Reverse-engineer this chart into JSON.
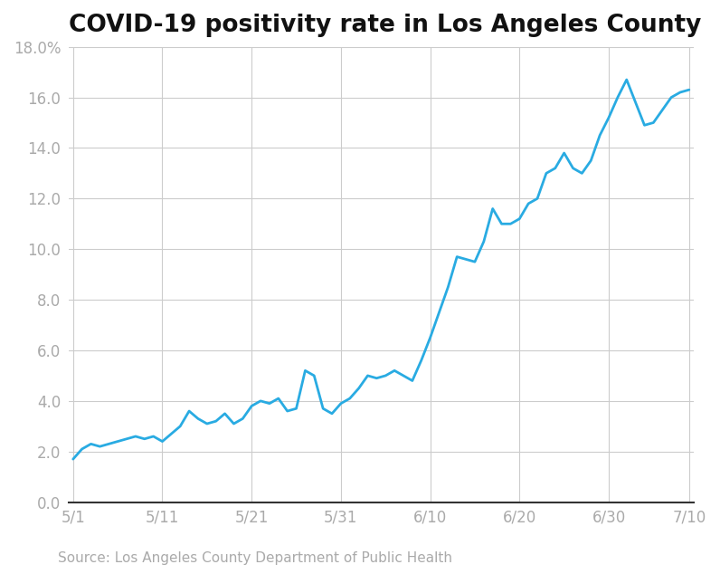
{
  "title": "COVID-19 positivity rate in Los Angeles County",
  "source_text": "Source: Los Angeles County Department of Public Health",
  "line_color": "#29ABE2",
  "background_color": "#ffffff",
  "grid_color": "#cccccc",
  "title_fontsize": 19,
  "tick_label_color": "#aaaaaa",
  "source_fontsize": 11,
  "ylim": [
    0,
    18
  ],
  "yticks": [
    0.0,
    2.0,
    4.0,
    6.0,
    8.0,
    10.0,
    12.0,
    14.0,
    16.0,
    18.0
  ],
  "ytick_labels": [
    "0.0",
    "2.0",
    "4.0",
    "6.0",
    "8.0",
    "10.0",
    "12.0",
    "14.0",
    "16.0",
    "18.0%"
  ],
  "xtick_labels": [
    "5/1",
    "5/11",
    "5/21",
    "5/31",
    "6/10",
    "6/20",
    "6/30",
    "7/10"
  ],
  "x_values": [
    0,
    1,
    2,
    3,
    4,
    5,
    6,
    7,
    8,
    9,
    10,
    11,
    12,
    13,
    14,
    15,
    16,
    17,
    18,
    19,
    20,
    21,
    22,
    23,
    24,
    25,
    26,
    27,
    28,
    29,
    30,
    31,
    32,
    33,
    34,
    35,
    36,
    37,
    38,
    39,
    40,
    41,
    42,
    43,
    44,
    45,
    46,
    47,
    48,
    49,
    50,
    51,
    52,
    53,
    54,
    55,
    56,
    57,
    58,
    59,
    60,
    61,
    62,
    63,
    64,
    65,
    66,
    67,
    68,
    69
  ],
  "y_values": [
    1.7,
    2.1,
    2.3,
    2.2,
    2.3,
    2.4,
    2.5,
    2.6,
    2.5,
    2.6,
    2.4,
    2.7,
    3.0,
    3.6,
    3.3,
    3.1,
    3.2,
    3.5,
    3.1,
    3.3,
    3.8,
    4.0,
    3.9,
    4.1,
    3.6,
    3.7,
    5.2,
    5.0,
    3.7,
    3.5,
    3.9,
    4.1,
    4.5,
    5.0,
    4.9,
    5.0,
    5.2,
    5.0,
    4.8,
    5.6,
    6.5,
    7.5,
    8.5,
    9.7,
    9.6,
    9.5,
    10.3,
    11.6,
    11.0,
    11.0,
    11.2,
    11.8,
    12.0,
    13.0,
    13.2,
    13.8,
    13.2,
    13.0,
    13.5,
    14.5,
    15.2,
    16.0,
    16.7,
    15.8,
    14.9,
    15.0,
    15.5,
    16.0,
    16.2,
    16.3
  ],
  "xtick_positions": [
    0,
    10,
    20,
    30,
    40,
    50,
    60,
    69
  ],
  "line_width": 2.0
}
